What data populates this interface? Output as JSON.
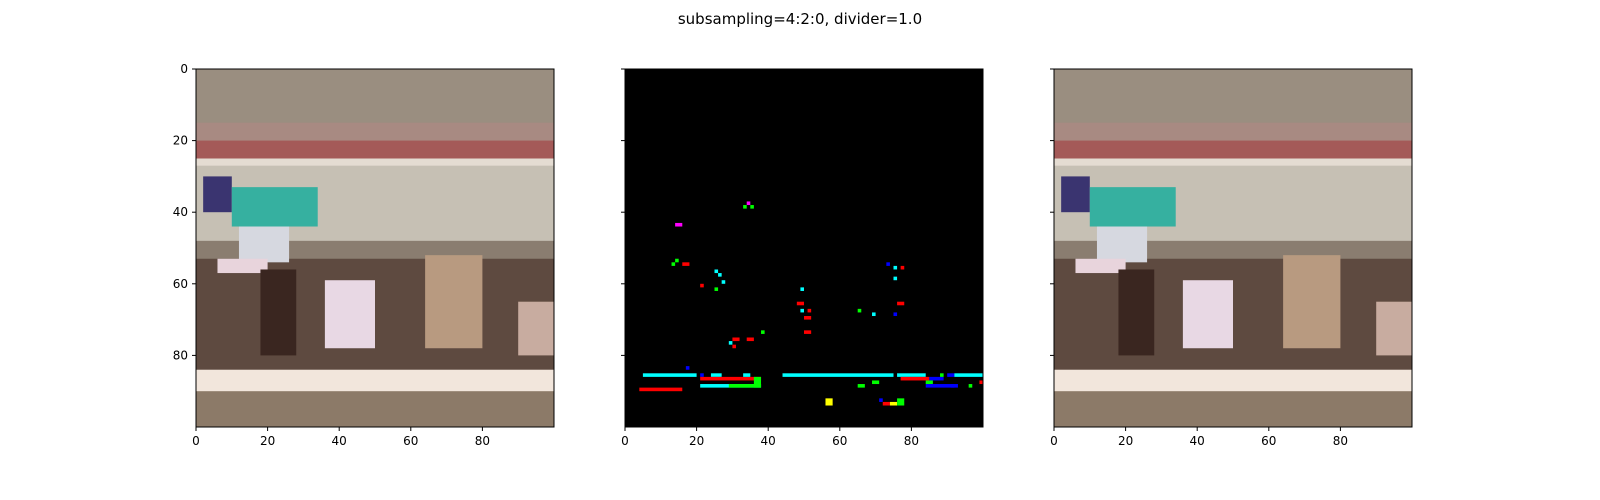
{
  "figure": {
    "title": "subsampling=4:2:0, divider=1.0"
  },
  "chart_data": [
    {
      "type": "heatmap",
      "panel": "original",
      "xlim": [
        0,
        100
      ],
      "ylim": [
        100,
        0
      ],
      "xticks": [
        0,
        20,
        40,
        60,
        80
      ],
      "yticks": [
        0,
        20,
        40,
        60,
        80
      ],
      "show_yticklabels": true,
      "image_bands": [
        {
          "y0": 0,
          "y1": 15,
          "color": "#9a8e80"
        },
        {
          "y0": 15,
          "y1": 20,
          "color": "#a88a82"
        },
        {
          "y0": 20,
          "y1": 25,
          "color": "#a45a58"
        },
        {
          "y0": 25,
          "y1": 27,
          "color": "#e4dcd2"
        },
        {
          "y0": 27,
          "y1": 48,
          "color": "#c6c0b4"
        },
        {
          "y0": 48,
          "y1": 53,
          "color": "#8a7d70"
        },
        {
          "y0": 53,
          "y1": 84,
          "color": "#5e4a40"
        },
        {
          "y0": 84,
          "y1": 90,
          "color": "#f2e6dc"
        },
        {
          "y0": 90,
          "y1": 100,
          "color": "#8c7a68"
        }
      ],
      "image_patches": [
        {
          "x": 2,
          "y": 30,
          "w": 8,
          "h": 10,
          "color": "#3a3470"
        },
        {
          "x": 10,
          "y": 33,
          "w": 24,
          "h": 11,
          "color": "#36b0a0"
        },
        {
          "x": 12,
          "y": 44,
          "w": 14,
          "h": 10,
          "color": "#d6d8e0"
        },
        {
          "x": 6,
          "y": 53,
          "w": 14,
          "h": 4,
          "color": "#e8d4dc"
        },
        {
          "x": 18,
          "y": 56,
          "w": 10,
          "h": 24,
          "color": "#3a2620"
        },
        {
          "x": 36,
          "y": 59,
          "w": 14,
          "h": 19,
          "color": "#e8d8e4"
        },
        {
          "x": 64,
          "y": 52,
          "w": 16,
          "h": 26,
          "color": "#b89a80"
        },
        {
          "x": 90,
          "y": 65,
          "w": 10,
          "h": 15,
          "color": "#c8aca0"
        }
      ]
    },
    {
      "type": "heatmap",
      "panel": "difference",
      "xlim": [
        0,
        100
      ],
      "ylim": [
        100,
        0
      ],
      "xticks": [
        0,
        20,
        40,
        60,
        80
      ],
      "yticks": [
        0,
        20,
        40,
        60,
        80
      ],
      "show_yticklabels": false,
      "background_color": "#000000",
      "cells": [
        {
          "x": 34,
          "y": 37,
          "w": 1,
          "h": 1,
          "color": "#ff00ff"
        },
        {
          "x": 33,
          "y": 38,
          "w": 1,
          "h": 1,
          "color": "#00ff00"
        },
        {
          "x": 35,
          "y": 38,
          "w": 1,
          "h": 1,
          "color": "#00ff00"
        },
        {
          "x": 14,
          "y": 43,
          "w": 2,
          "h": 1,
          "color": "#ff00ff"
        },
        {
          "x": 13,
          "y": 54,
          "w": 1,
          "h": 1,
          "color": "#00ff00"
        },
        {
          "x": 14,
          "y": 53,
          "w": 1,
          "h": 1,
          "color": "#00ff00"
        },
        {
          "x": 16,
          "y": 54,
          "w": 2,
          "h": 1,
          "color": "#ff0000"
        },
        {
          "x": 25,
          "y": 56,
          "w": 1,
          "h": 1,
          "color": "#00ffff"
        },
        {
          "x": 26,
          "y": 57,
          "w": 1,
          "h": 1,
          "color": "#00ffff"
        },
        {
          "x": 27,
          "y": 59,
          "w": 1,
          "h": 1,
          "color": "#00ffff"
        },
        {
          "x": 21,
          "y": 60,
          "w": 1,
          "h": 1,
          "color": "#ff0000"
        },
        {
          "x": 25,
          "y": 61,
          "w": 1,
          "h": 1,
          "color": "#00ff00"
        },
        {
          "x": 49,
          "y": 61,
          "w": 1,
          "h": 1,
          "color": "#00ffff"
        },
        {
          "x": 48,
          "y": 65,
          "w": 2,
          "h": 1,
          "color": "#ff0000"
        },
        {
          "x": 49,
          "y": 67,
          "w": 1,
          "h": 1,
          "color": "#00ffff"
        },
        {
          "x": 51,
          "y": 67,
          "w": 1,
          "h": 1,
          "color": "#ff0000"
        },
        {
          "x": 50,
          "y": 69,
          "w": 2,
          "h": 1,
          "color": "#ff0000"
        },
        {
          "x": 50,
          "y": 73,
          "w": 2,
          "h": 1,
          "color": "#ff0000"
        },
        {
          "x": 65,
          "y": 67,
          "w": 1,
          "h": 1,
          "color": "#00ff00"
        },
        {
          "x": 69,
          "y": 68,
          "w": 1,
          "h": 1,
          "color": "#00ffff"
        },
        {
          "x": 75,
          "y": 68,
          "w": 1,
          "h": 1,
          "color": "#0000ff"
        },
        {
          "x": 73,
          "y": 54,
          "w": 1,
          "h": 1,
          "color": "#0000ff"
        },
        {
          "x": 75,
          "y": 55,
          "w": 1,
          "h": 1,
          "color": "#00ffff"
        },
        {
          "x": 77,
          "y": 55,
          "w": 1,
          "h": 1,
          "color": "#ff0000"
        },
        {
          "x": 75,
          "y": 58,
          "w": 1,
          "h": 1,
          "color": "#00ffff"
        },
        {
          "x": 76,
          "y": 65,
          "w": 2,
          "h": 1,
          "color": "#ff0000"
        },
        {
          "x": 38,
          "y": 73,
          "w": 1,
          "h": 1,
          "color": "#00ff00"
        },
        {
          "x": 34,
          "y": 75,
          "w": 2,
          "h": 1,
          "color": "#ff0000"
        },
        {
          "x": 30,
          "y": 75,
          "w": 2,
          "h": 1,
          "color": "#ff0000"
        },
        {
          "x": 29,
          "y": 76,
          "w": 1,
          "h": 1,
          "color": "#00ffff"
        },
        {
          "x": 30,
          "y": 77,
          "w": 1,
          "h": 1,
          "color": "#ff0000"
        },
        {
          "x": 17,
          "y": 83,
          "w": 1,
          "h": 1,
          "color": "#0000ff"
        },
        {
          "x": 5,
          "y": 85,
          "w": 15,
          "h": 1,
          "color": "#00ffff"
        },
        {
          "x": 4,
          "y": 89,
          "w": 12,
          "h": 1,
          "color": "#ff0000"
        },
        {
          "x": 21,
          "y": 85,
          "w": 1,
          "h": 1,
          "color": "#0000ff"
        },
        {
          "x": 24,
          "y": 85,
          "w": 3,
          "h": 1,
          "color": "#00ffff"
        },
        {
          "x": 21,
          "y": 86,
          "w": 17,
          "h": 1,
          "color": "#ff0000"
        },
        {
          "x": 33,
          "y": 85,
          "w": 2,
          "h": 1,
          "color": "#00ffff"
        },
        {
          "x": 21,
          "y": 88,
          "w": 17,
          "h": 1,
          "color": "#00ffff"
        },
        {
          "x": 36,
          "y": 86,
          "w": 2,
          "h": 3,
          "color": "#00ff00"
        },
        {
          "x": 29,
          "y": 88,
          "w": 9,
          "h": 1,
          "color": "#00ff00"
        },
        {
          "x": 44,
          "y": 85,
          "w": 31,
          "h": 1,
          "color": "#00ffff"
        },
        {
          "x": 76,
          "y": 85,
          "w": 8,
          "h": 1,
          "color": "#00ffff"
        },
        {
          "x": 77,
          "y": 86,
          "w": 8,
          "h": 1,
          "color": "#ff0000"
        },
        {
          "x": 85,
          "y": 86,
          "w": 4,
          "h": 1,
          "color": "#0000ff"
        },
        {
          "x": 84,
          "y": 87,
          "w": 2,
          "h": 1,
          "color": "#00ff00"
        },
        {
          "x": 88,
          "y": 85,
          "w": 1,
          "h": 1,
          "color": "#00ff00"
        },
        {
          "x": 90,
          "y": 85,
          "w": 2,
          "h": 1,
          "color": "#0000ff"
        },
        {
          "x": 92,
          "y": 85,
          "w": 8,
          "h": 1,
          "color": "#00ffff"
        },
        {
          "x": 99,
          "y": 87,
          "w": 1,
          "h": 1,
          "color": "#ff0000"
        },
        {
          "x": 84,
          "y": 88,
          "w": 8,
          "h": 1,
          "color": "#0000ff"
        },
        {
          "x": 91,
          "y": 88,
          "w": 2,
          "h": 1,
          "color": "#0000ff"
        },
        {
          "x": 96,
          "y": 88,
          "w": 1,
          "h": 1,
          "color": "#00ff00"
        },
        {
          "x": 65,
          "y": 88,
          "w": 2,
          "h": 1,
          "color": "#00ff00"
        },
        {
          "x": 69,
          "y": 87,
          "w": 2,
          "h": 1,
          "color": "#00ff00"
        },
        {
          "x": 71,
          "y": 92,
          "w": 1,
          "h": 1,
          "color": "#0000ff"
        },
        {
          "x": 72,
          "y": 93,
          "w": 2,
          "h": 1,
          "color": "#ff0000"
        },
        {
          "x": 74,
          "y": 93,
          "w": 2,
          "h": 1,
          "color": "#ffff00"
        },
        {
          "x": 76,
          "y": 92,
          "w": 2,
          "h": 2,
          "color": "#00ff00"
        },
        {
          "x": 56,
          "y": 92,
          "w": 2,
          "h": 2,
          "color": "#ffff00"
        }
      ]
    },
    {
      "type": "heatmap",
      "panel": "reconstructed",
      "xlim": [
        0,
        100
      ],
      "ylim": [
        100,
        0
      ],
      "xticks": [
        0,
        20,
        40,
        60,
        80
      ],
      "yticks": [
        0,
        20,
        40,
        60,
        80
      ],
      "show_yticklabels": false,
      "image_same_as_panel": 0
    }
  ]
}
